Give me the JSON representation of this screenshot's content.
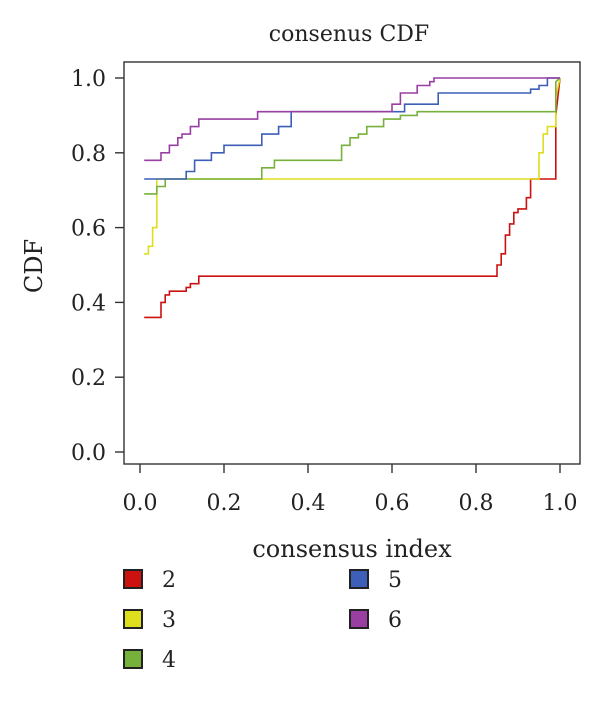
{
  "chart_data": {
    "type": "line",
    "title": "consenus CDF",
    "xlabel": "consensus index",
    "ylabel": "CDF",
    "xlim": [
      0,
      1
    ],
    "ylim": [
      0,
      1
    ],
    "xticks": [
      "0.0",
      "0.2",
      "0.4",
      "0.6",
      "0.8",
      "1.0"
    ],
    "yticks": [
      "0.0",
      "0.2",
      "0.4",
      "0.6",
      "0.8",
      "1.0"
    ],
    "grid": false,
    "legend_position": "bottom",
    "series": [
      {
        "name": "2",
        "color": "#cc1111",
        "x": [
          0.01,
          0.05,
          0.05,
          0.06,
          0.06,
          0.07,
          0.07,
          0.11,
          0.11,
          0.12,
          0.12,
          0.14,
          0.14,
          0.85,
          0.85,
          0.86,
          0.86,
          0.87,
          0.87,
          0.88,
          0.88,
          0.89,
          0.89,
          0.9,
          0.9,
          0.92,
          0.92,
          0.93,
          0.93,
          0.96,
          0.96,
          0.99,
          0.99,
          1.0
        ],
        "y": [
          0.36,
          0.36,
          0.4,
          0.4,
          0.42,
          0.42,
          0.43,
          0.43,
          0.44,
          0.44,
          0.45,
          0.45,
          0.47,
          0.47,
          0.5,
          0.5,
          0.53,
          0.53,
          0.58,
          0.58,
          0.61,
          0.61,
          0.64,
          0.64,
          0.65,
          0.65,
          0.68,
          0.68,
          0.73,
          0.73,
          0.73,
          0.73,
          0.9,
          1.0
        ]
      },
      {
        "name": "3",
        "color": "#dede1e",
        "x": [
          0.01,
          0.02,
          0.02,
          0.03,
          0.03,
          0.04,
          0.04,
          0.95,
          0.95,
          0.96,
          0.96,
          0.97,
          0.97,
          0.99,
          0.99,
          1.0
        ],
        "y": [
          0.53,
          0.53,
          0.55,
          0.55,
          0.6,
          0.6,
          0.73,
          0.73,
          0.8,
          0.8,
          0.85,
          0.85,
          0.87,
          0.87,
          0.95,
          1.0
        ]
      },
      {
        "name": "4",
        "color": "#77b13c",
        "x": [
          0.01,
          0.04,
          0.04,
          0.06,
          0.06,
          0.08,
          0.08,
          0.29,
          0.29,
          0.32,
          0.32,
          0.48,
          0.48,
          0.5,
          0.5,
          0.52,
          0.52,
          0.54,
          0.54,
          0.58,
          0.58,
          0.62,
          0.62,
          0.66,
          0.66,
          0.69,
          0.69,
          0.99,
          0.99,
          1.0
        ],
        "y": [
          0.69,
          0.69,
          0.71,
          0.71,
          0.73,
          0.73,
          0.73,
          0.73,
          0.76,
          0.76,
          0.78,
          0.78,
          0.82,
          0.82,
          0.84,
          0.84,
          0.85,
          0.85,
          0.87,
          0.87,
          0.89,
          0.89,
          0.9,
          0.9,
          0.91,
          0.91,
          0.91,
          0.91,
          0.99,
          1.0
        ]
      },
      {
        "name": "5",
        "color": "#3d5fb8",
        "x": [
          0.01,
          0.11,
          0.11,
          0.13,
          0.13,
          0.17,
          0.17,
          0.2,
          0.2,
          0.29,
          0.29,
          0.33,
          0.33,
          0.36,
          0.36,
          0.41,
          0.41,
          0.57,
          0.57,
          0.63,
          0.63,
          0.71,
          0.71,
          0.93,
          0.93,
          0.95,
          0.95,
          0.97,
          0.97,
          1.0
        ],
        "y": [
          0.73,
          0.73,
          0.75,
          0.75,
          0.78,
          0.78,
          0.8,
          0.8,
          0.82,
          0.82,
          0.85,
          0.85,
          0.87,
          0.87,
          0.91,
          0.91,
          0.91,
          0.91,
          0.91,
          0.91,
          0.93,
          0.93,
          0.96,
          0.96,
          0.97,
          0.97,
          0.98,
          0.98,
          1.0,
          1.0
        ]
      },
      {
        "name": "6",
        "color": "#9a3fa2",
        "x": [
          0.01,
          0.05,
          0.05,
          0.07,
          0.07,
          0.09,
          0.09,
          0.1,
          0.1,
          0.12,
          0.12,
          0.14,
          0.14,
          0.16,
          0.16,
          0.28,
          0.28,
          0.6,
          0.6,
          0.62,
          0.62,
          0.66,
          0.66,
          0.69,
          0.69,
          0.7,
          0.7,
          1.0
        ],
        "y": [
          0.78,
          0.78,
          0.8,
          0.8,
          0.82,
          0.82,
          0.84,
          0.84,
          0.85,
          0.85,
          0.87,
          0.87,
          0.89,
          0.89,
          0.89,
          0.89,
          0.91,
          0.91,
          0.93,
          0.93,
          0.96,
          0.96,
          0.98,
          0.98,
          0.99,
          0.99,
          1.0,
          1.0
        ]
      }
    ]
  }
}
